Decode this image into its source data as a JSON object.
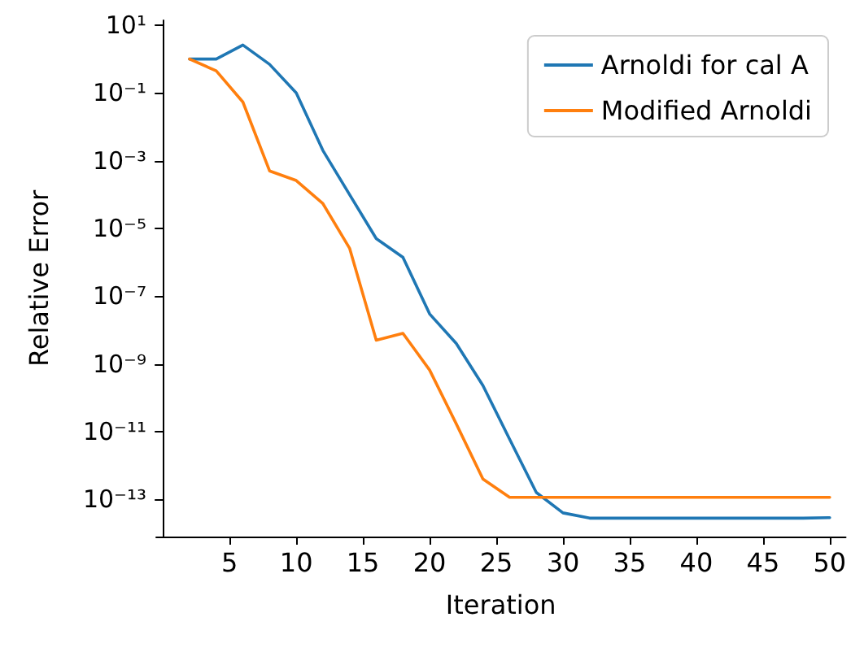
{
  "chart_data": {
    "type": "line",
    "xlabel": "Iteration",
    "ylabel": "Relative Error",
    "log": "y",
    "grid": false,
    "legend": "top right",
    "marker": "none",
    "line_style": "solid",
    "x": [
      2,
      4,
      6,
      8,
      10,
      12,
      14,
      16,
      18,
      20,
      22,
      24,
      26,
      28,
      30,
      32,
      34,
      36,
      38,
      40,
      42,
      44,
      46,
      48,
      50
    ],
    "xlim": [
      -0.5,
      51.2
    ],
    "xticks": [
      5,
      10,
      15,
      20,
      25,
      30,
      35,
      40,
      45,
      50
    ],
    "ylim": [
      8e-15,
      14
    ],
    "yticks": [
      {
        "value": 1e-13,
        "label": "10⁻¹³"
      },
      {
        "value": 1e-11,
        "label": "10⁻¹¹"
      },
      {
        "value": 1e-09,
        "label": "10⁻⁹"
      },
      {
        "value": 1e-07,
        "label": "10⁻⁷"
      },
      {
        "value": 1e-05,
        "label": "10⁻⁵"
      },
      {
        "value": 0.001,
        "label": "10⁻³"
      },
      {
        "value": 0.1,
        "label": "10⁻¹"
      },
      {
        "value": 10,
        "label": "10¹"
      }
    ],
    "series": [
      {
        "name": "Arnoldi for cal A",
        "color": "#1f77b4",
        "values": [
          1,
          1,
          2.6,
          0.7,
          0.1,
          0.002,
          0.0001,
          5e-06,
          1.4e-06,
          3e-08,
          4e-09,
          2.3e-10,
          6e-12,
          1.6e-13,
          4e-14,
          2.8e-14,
          2.8e-14,
          2.8e-14,
          2.8e-14,
          2.8e-14,
          2.8e-14,
          2.8e-14,
          2.8e-14,
          2.8e-14,
          2.9e-14
        ]
      },
      {
        "name": "Modified Arnoldi",
        "color": "#ff7f0e",
        "values": [
          1,
          0.45,
          0.054,
          0.0005,
          0.00026,
          5.4e-05,
          2.6e-06,
          5e-09,
          8e-09,
          6.6e-10,
          1.7e-11,
          4e-13,
          1.15e-13,
          1.15e-13,
          1.15e-13,
          1.15e-13,
          1.15e-13,
          1.15e-13,
          1.15e-13,
          1.15e-13,
          1.15e-13,
          1.15e-13,
          1.15e-13,
          1.15e-13,
          1.15e-13
        ]
      }
    ]
  }
}
